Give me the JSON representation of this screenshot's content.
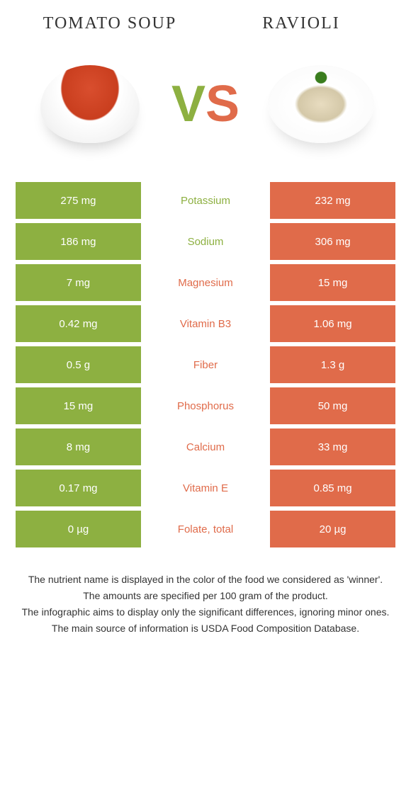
{
  "header": {
    "food1_title": "Tomato soup",
    "food2_title": "Ravioli",
    "vs_v": "V",
    "vs_s": "S"
  },
  "colors": {
    "food1_bg": "#8db041",
    "food2_bg": "#e06b4a",
    "food1_text": "#8db041",
    "food2_text": "#e06b4a"
  },
  "nutrients": [
    {
      "name": "Potassium",
      "left": "275 mg",
      "right": "232 mg",
      "winner": "food1"
    },
    {
      "name": "Sodium",
      "left": "186 mg",
      "right": "306 mg",
      "winner": "food1"
    },
    {
      "name": "Magnesium",
      "left": "7 mg",
      "right": "15 mg",
      "winner": "food2"
    },
    {
      "name": "Vitamin B3",
      "left": "0.42 mg",
      "right": "1.06 mg",
      "winner": "food2"
    },
    {
      "name": "Fiber",
      "left": "0.5 g",
      "right": "1.3 g",
      "winner": "food2"
    },
    {
      "name": "Phosphorus",
      "left": "15 mg",
      "right": "50 mg",
      "winner": "food2"
    },
    {
      "name": "Calcium",
      "left": "8 mg",
      "right": "33 mg",
      "winner": "food2"
    },
    {
      "name": "Vitamin E",
      "left": "0.17 mg",
      "right": "0.85 mg",
      "winner": "food2"
    },
    {
      "name": "Folate, total",
      "left": "0 µg",
      "right": "20 µg",
      "winner": "food2"
    }
  ],
  "footer": {
    "line1": "The nutrient name is displayed in the color of the food we considered as 'winner'.",
    "line2": "The amounts are specified per 100 gram of the product.",
    "line3": "The infographic aims to display only the significant differences, ignoring minor ones.",
    "line4": "The main source of information is USDA Food Composition Database."
  }
}
